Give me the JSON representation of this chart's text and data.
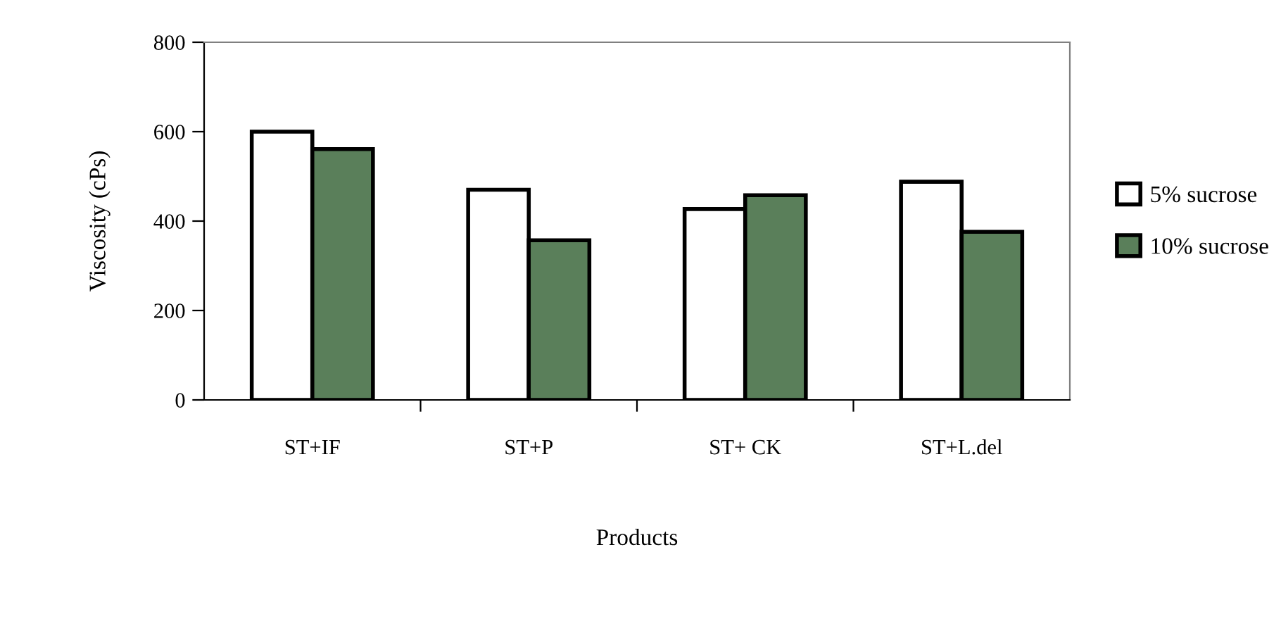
{
  "chart_data": {
    "type": "bar",
    "xlabel": "Products",
    "ylabel": "Viscosity (cPs)",
    "categories": [
      "ST+IF",
      "ST+P",
      "ST+ CK",
      "ST+L.del"
    ],
    "series": [
      {
        "name": "5% sucrose",
        "color": "#ffffff",
        "values": [
          600,
          470,
          427,
          488
        ]
      },
      {
        "name": "10% sucrose",
        "color": "#5a7f5a",
        "values": [
          561,
          357,
          458,
          376
        ]
      }
    ],
    "ylim": [
      0,
      800
    ],
    "yticks": [
      0,
      200,
      400,
      600,
      800
    ],
    "grid": false,
    "legend": "right"
  }
}
